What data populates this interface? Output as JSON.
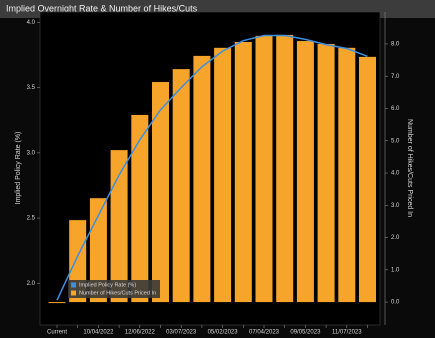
{
  "chart_data": {
    "type": "bar-line",
    "title": "Implied Overnight Rate & Number of Hikes/Cuts",
    "y_label": "Implied Policy Rate (%)",
    "y2_label": "Number of Hikes/Cuts Priced In",
    "categories": [
      "Current",
      null,
      "10/04/2022",
      null,
      "12/06/2022",
      null,
      "03/07/2023",
      null,
      "05/02/2023",
      null,
      "07/04/2023",
      null,
      "09/05/2023",
      null,
      "11/07/2023",
      null
    ],
    "series": [
      {
        "name": "Implied Policy Rate (%)",
        "type": "line",
        "color": "#3d8fe0",
        "values": [
          1.87,
          2.21,
          2.52,
          2.83,
          3.1,
          3.33,
          3.5,
          3.66,
          3.78,
          3.86,
          3.9,
          3.9,
          3.87,
          3.83,
          3.8,
          3.74
        ]
      },
      {
        "name": "Number of Hikes/Cuts Priced In",
        "type": "bar",
        "axis": "y2",
        "color": "#f7a42b",
        "values": [
          0,
          2.54,
          3.22,
          4.71,
          5.8,
          6.82,
          7.22,
          7.63,
          7.88,
          8.06,
          8.25,
          8.28,
          8.09,
          8.0,
          7.88,
          7.6
        ]
      }
    ],
    "ylim": [
      1.68,
      4.08
    ],
    "yticks": [
      {
        "value": 2,
        "label": "2.0"
      },
      {
        "value": 2.5,
        "label": "2.5"
      },
      {
        "value": 3,
        "label": "3.0"
      },
      {
        "value": 3.5,
        "label": "3.5"
      },
      {
        "value": 4,
        "label": "4.0"
      }
    ],
    "y2lim": [
      -0.71,
      8.99
    ],
    "y2ticks": [
      {
        "value": 0,
        "label": "0.0"
      },
      {
        "value": 1,
        "label": "1.0"
      },
      {
        "value": 2,
        "label": "2.0"
      },
      {
        "value": 3,
        "label": "3.0"
      },
      {
        "value": 4,
        "label": "4.0"
      },
      {
        "value": 5,
        "label": "5.0"
      },
      {
        "value": 6,
        "label": "6.0"
      },
      {
        "value": 7,
        "label": "7.0"
      },
      {
        "value": 8,
        "label": "8.0"
      }
    ],
    "legend": "lower left"
  }
}
